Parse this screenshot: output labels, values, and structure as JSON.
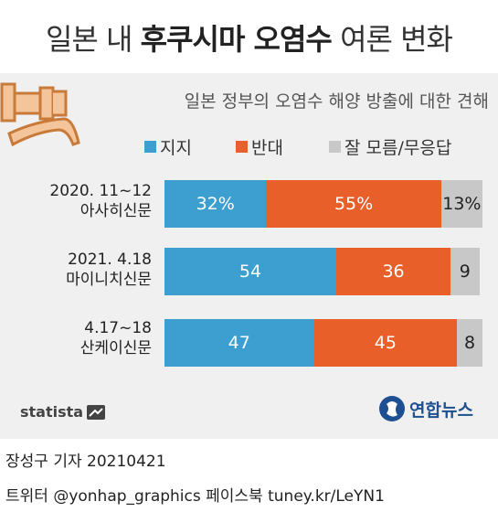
{
  "header": {
    "title_prefix": "일본 내 ",
    "title_bold": "후쿠시마 오염수",
    "title_suffix": " 여론 변화"
  },
  "chart_data": {
    "type": "bar",
    "stacked": true,
    "orientation": "horizontal",
    "subtitle": "일본 정부의 오염수 해양 방출에 대한 견해",
    "legend": [
      {
        "name": "지지",
        "color": "#3c9fcf"
      },
      {
        "name": "반대",
        "color": "#e85f2a"
      },
      {
        "name": "잘 모름/무응답",
        "color": "#c8c8c8"
      }
    ],
    "categories": [
      {
        "line1": "2020. 11~12",
        "line2": "아사히신문"
      },
      {
        "line1": "2021. 4.18",
        "line2": "마이니치신문"
      },
      {
        "line1": "4.17~18",
        "line2": "산케이신문"
      }
    ],
    "series": [
      {
        "name": "지지",
        "values": [
          32,
          54,
          47
        ],
        "labels": [
          "32%",
          "54",
          "47"
        ]
      },
      {
        "name": "반대",
        "values": [
          55,
          36,
          45
        ],
        "labels": [
          "55%",
          "36",
          "45"
        ]
      },
      {
        "name": "잘 모름/무응답",
        "values": [
          13,
          9,
          8
        ],
        "labels": [
          "13%",
          "9",
          "8"
        ]
      }
    ],
    "xlim": [
      0,
      100
    ]
  },
  "logos": {
    "statista": "statista",
    "yonhap": "연합뉴스"
  },
  "footer": {
    "credit": "장성구 기자  20210421",
    "social": "트위터 @yonhap_graphics  페이스북 tuney.kr/LeYN1"
  }
}
